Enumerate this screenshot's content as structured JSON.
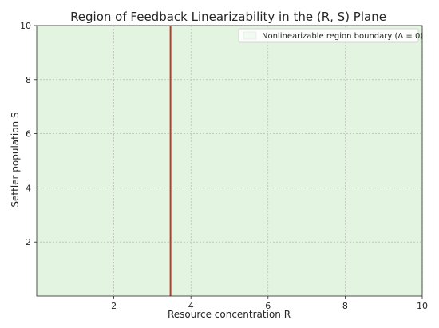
{
  "chart_data": {
    "type": "line",
    "title": "Region of Feedback Linearizability in the (R, S) Plane",
    "xlabel": "Resource concentration R",
    "ylabel": "Settler population S",
    "xlim": [
      0,
      10
    ],
    "ylim": [
      0,
      10
    ],
    "x_ticks": [
      2,
      4,
      6,
      8,
      10
    ],
    "y_ticks": [
      2,
      4,
      6,
      8,
      10
    ],
    "x_tick_labels": [
      "2",
      "4",
      "6",
      "8",
      "10"
    ],
    "y_tick_labels": [
      "2",
      "4",
      "6",
      "8",
      "10"
    ],
    "grid": true,
    "legend_position": "top-right",
    "region_fill_color": "#e3f4e1",
    "series": [
      {
        "name": "Nonlinearizable region boundary (Δ = 0)",
        "type": "vline",
        "x": 3.47,
        "color": "#c0392b"
      }
    ],
    "colors": {
      "boundary": "#c0392b",
      "region": "#e3f4e1",
      "frame": "#262626"
    }
  }
}
